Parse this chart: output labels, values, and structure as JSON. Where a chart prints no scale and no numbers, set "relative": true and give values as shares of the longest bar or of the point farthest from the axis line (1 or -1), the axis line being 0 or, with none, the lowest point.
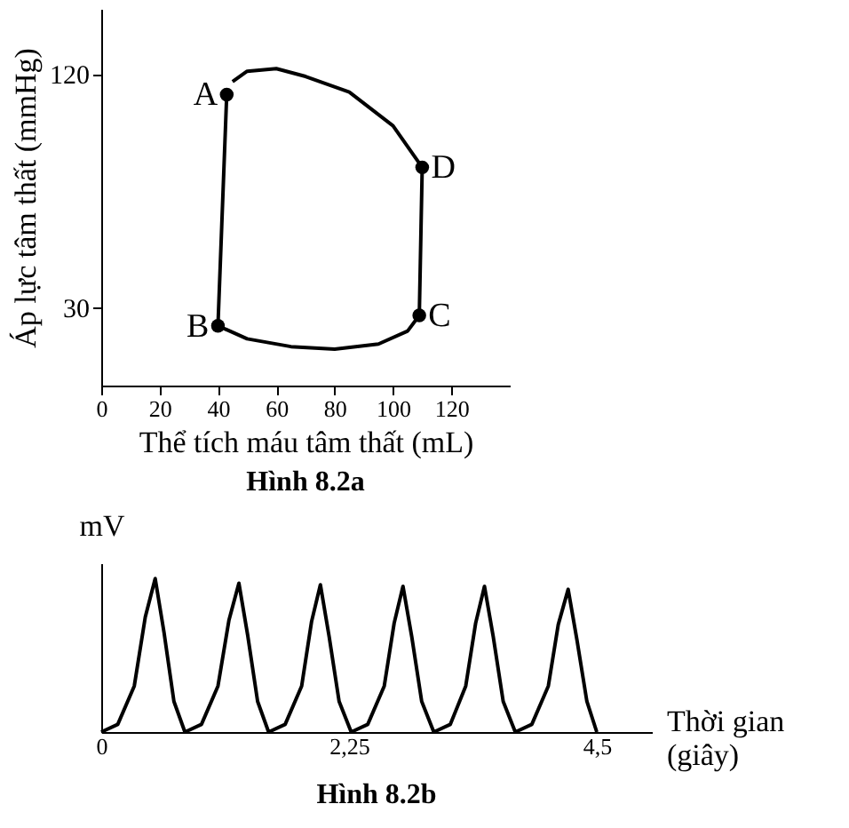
{
  "chart_data": [
    {
      "type": "line",
      "title": "Hình 8.2a",
      "xlabel": "Thể tích máu tâm thất (mL)",
      "ylabel": "Áp lực tâm thất (mmHg)",
      "xlim": [
        0,
        140
      ],
      "ylim": [
        0,
        145
      ],
      "xticks": [
        0,
        20,
        40,
        60,
        80,
        100,
        120
      ],
      "yticks": [
        30,
        120
      ],
      "grid": false,
      "series": [
        {
          "type": "line",
          "color": "#000000",
          "marker": "none",
          "x": [
            43,
            40,
            50,
            65,
            80,
            95,
            105,
            109,
            110,
            100,
            85,
            70,
            60,
            50,
            45
          ],
          "values": [
            112,
            23,
            18,
            15,
            14,
            16,
            21,
            27,
            84,
            100,
            113,
            119,
            122,
            121,
            117
          ]
        },
        {
          "type": "scatter",
          "color": "#000000",
          "marker": "circle",
          "x": [
            43,
            40,
            109,
            110
          ],
          "values": [
            112,
            23,
            27,
            84
          ]
        }
      ],
      "annotations": [
        {
          "text": "A",
          "x": 43,
          "y": 112
        },
        {
          "text": "B",
          "x": 40,
          "y": 23
        },
        {
          "text": "C",
          "x": 109,
          "y": 27
        },
        {
          "text": "D",
          "x": 110,
          "y": 84
        }
      ]
    },
    {
      "type": "line",
      "relative": true,
      "title": "Hình 8.2b",
      "xlabel": "Thời gian (giây)",
      "ylabel": "mV",
      "xlim": [
        0,
        5
      ],
      "xticks": [
        0,
        {
          "value": 2.25,
          "label": "2,25"
        },
        {
          "value": 4.5,
          "label": "4,5"
        }
      ],
      "grid": false,
      "tick_labels": "x",
      "series": [
        {
          "color": "#000000",
          "marker": "none",
          "x": [
            0,
            0.15,
            0.3,
            0.4,
            0.49,
            0.57,
            0.66,
            0.76,
            0.91,
            1.06,
            1.16,
            1.25,
            1.33,
            1.42,
            1.52,
            1.67,
            1.82,
            1.91,
            1.99,
            2.07,
            2.16,
            2.27,
            2.42,
            2.57,
            2.66,
            2.74,
            2.82,
            2.91,
            3.02,
            3.17,
            3.31,
            3.4,
            3.48,
            3.56,
            3.65,
            3.76,
            3.91,
            4.06,
            4.15,
            4.24,
            4.32,
            4.41,
            4.5
          ],
          "values": [
            0,
            0.05,
            0.3,
            0.75,
            1,
            0.65,
            0.2,
            0,
            0.05,
            0.3,
            0.73,
            0.97,
            0.63,
            0.2,
            0,
            0.05,
            0.3,
            0.72,
            0.96,
            0.62,
            0.2,
            0,
            0.05,
            0.3,
            0.71,
            0.95,
            0.62,
            0.2,
            0,
            0.05,
            0.3,
            0.71,
            0.95,
            0.62,
            0.2,
            0,
            0.05,
            0.3,
            0.7,
            0.93,
            0.6,
            0.2,
            0
          ]
        }
      ]
    }
  ]
}
